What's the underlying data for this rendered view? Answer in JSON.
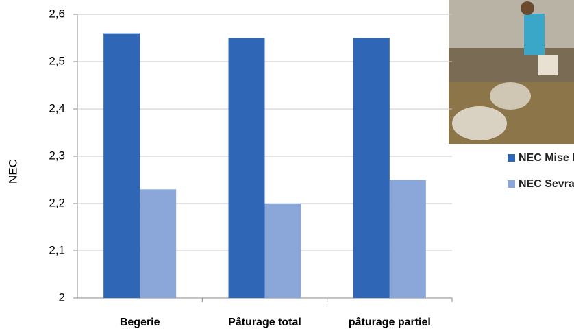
{
  "chart_data": {
    "type": "bar",
    "y_label": "NEC",
    "categories": [
      "Begerie",
      "Pâturage total",
      "pâturage partiel"
    ],
    "series": [
      {
        "name": "NEC Mise Bas",
        "color": "#2f66b6",
        "values": [
          2.56,
          2.55,
          2.55
        ]
      },
      {
        "name": "NEC Sevrage",
        "color": "#8ba7da",
        "values": [
          2.23,
          2.2,
          2.25
        ]
      }
    ],
    "ylim": [
      2,
      2.6
    ],
    "yticks": [
      2,
      {
        "value": 2.1,
        "label": "2,1"
      },
      {
        "value": 2.2,
        "label": "2,2"
      },
      {
        "value": 2.3,
        "label": "2,3"
      },
      {
        "value": 2.4,
        "label": "2,4"
      },
      {
        "value": 2.5,
        "label": "2,5"
      },
      {
        "value": 2.6,
        "label": "2,6"
      }
    ],
    "grid": true
  }
}
